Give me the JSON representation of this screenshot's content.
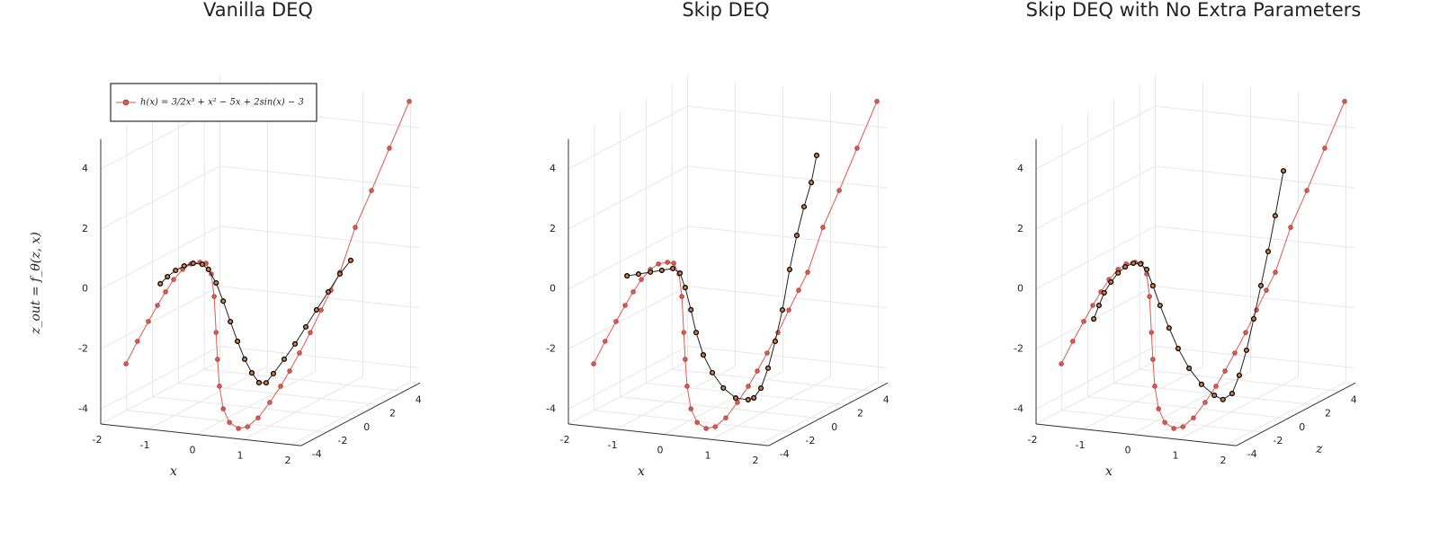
{
  "chart_data": [
    {
      "type": "line3d",
      "title": "Vanilla DEQ",
      "xlabel": "x",
      "ylabel": "z_out = f_θ(z, x)",
      "xlim": [
        -2,
        2.2
      ],
      "ylim": [
        -4.5,
        5
      ],
      "zlim": [
        -4,
        5.2
      ],
      "xticks": [
        -2,
        -1,
        0,
        1,
        2
      ],
      "yticks": [
        -4,
        -2,
        0,
        2,
        4
      ],
      "zticks": [
        -4,
        -2,
        0,
        2,
        4
      ],
      "grid": true,
      "legend": "top-left",
      "series": [
        {
          "name": "h(x) = 3/2x³ + x² − 5x + 2sin(x) − 3",
          "color": "#e0584f",
          "x": [
            -1.47,
            -1.23,
            -1.0,
            -0.81,
            -0.64,
            -0.47,
            -0.28,
            -0.11,
            0.08,
            0.21,
            0.32,
            0.38,
            0.42,
            0.45,
            0.49,
            0.57,
            0.7,
            0.89,
            1.08,
            1.15,
            1.22,
            1.29,
            1.36,
            1.43,
            1.5,
            1.57,
            1.64,
            1.71,
            1.78,
            1.85,
            1.92,
            2.0
          ],
          "y": [
            -2.4,
            -1.61,
            -0.91,
            -0.34,
            0.14,
            0.58,
            0.95,
            1.16,
            1.25,
            1.24,
            0.9,
            0.16,
            -1.03,
            -1.92,
            -2.81,
            -3.55,
            -3.98,
            -4.15,
            -4.06,
            -3.88,
            -3.5,
            -3.08,
            -2.66,
            -2.16,
            -1.6,
            -0.97,
            -0.41,
            0.1,
            1.4,
            2.41,
            3.58,
            4.87
          ],
          "z": [
            -4,
            -4,
            -4,
            -4,
            -4,
            -4,
            -4,
            -4,
            -4,
            -4,
            -4,
            -4,
            -4,
            -4,
            -4,
            -4,
            -4,
            -4,
            -4,
            -3.44,
            -2.8,
            -2.22,
            -1.78,
            -1.28,
            -0.7,
            -0.12,
            0.38,
            0.82,
            1.74,
            2.74,
            3.86,
            5.1
          ]
        },
        {
          "color": "#d9823e",
          "x": [
            -0.75,
            -0.6,
            -0.43,
            -0.25,
            -0.06,
            0.13,
            0.26,
            0.42,
            0.57,
            0.72,
            0.87,
            1.02,
            1.17,
            1.32,
            1.4,
            1.47,
            1.54,
            1.61,
            1.68,
            1.75,
            1.82,
            1.89,
            1.96
          ],
          "y": [
            0.39,
            0.65,
            0.89,
            1.07,
            1.19,
            1.19,
            1.04,
            0.62,
            0.04,
            -0.62,
            -1.25,
            -1.82,
            -2.25,
            -2.55,
            -2.6,
            -2.35,
            -1.99,
            -1.6,
            -1.15,
            -0.7,
            -0.24,
            0.23,
            0.56
          ],
          "z": [
            -4,
            -4,
            -4,
            -4,
            -4,
            -4,
            -4,
            -4,
            -4,
            -4,
            -4,
            -4,
            -4,
            -4,
            -3.74,
            -3.44,
            -2.86,
            -2.28,
            -1.71,
            -1.14,
            -0.49,
            0.15,
            0.73
          ]
        }
      ]
    },
    {
      "type": "line3d",
      "title": "Skip DEQ",
      "xlabel": "x",
      "xlim": [
        -2,
        2.2
      ],
      "ylim": [
        -4.5,
        5
      ],
      "zlim": [
        -4,
        5.2
      ],
      "xticks": [
        -2,
        -1,
        0,
        1,
        2
      ],
      "yticks": [
        -4,
        -2,
        0,
        2,
        4
      ],
      "zticks": [
        -4,
        -2,
        0,
        2,
        4
      ],
      "grid": true,
      "series": [
        {
          "color": "#e0584f",
          "x": [
            -1.47,
            -1.23,
            -1.0,
            -0.81,
            -0.64,
            -0.47,
            -0.28,
            -0.11,
            0.08,
            0.21,
            0.32,
            0.38,
            0.42,
            0.45,
            0.49,
            0.57,
            0.7,
            0.89,
            1.08,
            1.15,
            1.22,
            1.29,
            1.36,
            1.43,
            1.5,
            1.57,
            1.64,
            1.71,
            1.78,
            1.85,
            1.92,
            2.0
          ],
          "y": [
            -2.4,
            -1.61,
            -0.91,
            -0.34,
            0.14,
            0.58,
            0.95,
            1.16,
            1.25,
            1.24,
            0.9,
            0.16,
            -1.03,
            -1.92,
            -2.81,
            -3.55,
            -3.98,
            -4.15,
            -4.06,
            -3.88,
            -3.5,
            -3.08,
            -2.66,
            -2.16,
            -1.6,
            -0.97,
            -0.41,
            0.1,
            1.4,
            2.41,
            3.58,
            4.87
          ],
          "z": [
            -4,
            -4,
            -4,
            -4,
            -4,
            -4,
            -4,
            -4,
            -4,
            -4,
            -4,
            -4,
            -4,
            -4,
            -4,
            -4,
            -4,
            -4,
            -4,
            -3.44,
            -2.8,
            -2.22,
            -1.78,
            -1.28,
            -0.7,
            -0.12,
            0.38,
            0.82,
            1.74,
            2.74,
            3.86,
            5.1
          ]
        },
        {
          "color": "#d9823e",
          "x": [
            -0.77,
            -0.53,
            -0.28,
            -0.04,
            0.19,
            0.34,
            0.45,
            0.57,
            0.68,
            0.83,
            1.02,
            1.25,
            1.51,
            1.77,
            1.89,
            1.9,
            1.91,
            1.92,
            1.93,
            1.94,
            1.95,
            1.96,
            1.97,
            1.98
          ],
          "y": [
            0.65,
            0.75,
            0.86,
            0.96,
            1.06,
            0.93,
            0.47,
            -0.25,
            -0.99,
            -1.71,
            -2.27,
            -2.74,
            -3.03,
            -3.04,
            -2.96,
            -2.75,
            -2.2,
            -1.42,
            -0.49,
            0.74,
            1.76,
            2.6,
            3.29,
            4.11
          ],
          "z": [
            -4,
            -4,
            -4,
            -4,
            -4,
            -4,
            -4,
            -4,
            -4,
            -4,
            -4,
            -4,
            -4,
            -4,
            -4,
            -3.49,
            -2.97,
            -2.46,
            -1.94,
            -1.42,
            -0.9,
            -0.38,
            0.14,
            0.52
          ]
        }
      ]
    },
    {
      "type": "line3d",
      "title": "Skip DEQ with No Extra Parameters",
      "xlabel": "x",
      "zlabel": "z",
      "xlim": [
        -2,
        2.2
      ],
      "ylim": [
        -4.5,
        5
      ],
      "zlim": [
        -4,
        5.2
      ],
      "xticks": [
        -2,
        -1,
        0,
        1,
        2
      ],
      "yticks": [
        -4,
        -2,
        0,
        2,
        4
      ],
      "zticks": [
        -4,
        -2,
        0,
        2,
        4
      ],
      "grid": true,
      "series": [
        {
          "color": "#e0584f",
          "x": [
            -1.47,
            -1.23,
            -1.0,
            -0.81,
            -0.64,
            -0.47,
            -0.28,
            -0.11,
            0.08,
            0.21,
            0.32,
            0.38,
            0.42,
            0.45,
            0.49,
            0.57,
            0.7,
            0.89,
            1.08,
            1.15,
            1.22,
            1.29,
            1.36,
            1.43,
            1.5,
            1.57,
            1.64,
            1.71,
            1.78,
            1.85,
            1.92,
            2.0
          ],
          "y": [
            -2.4,
            -1.61,
            -0.91,
            -0.34,
            0.14,
            0.58,
            0.95,
            1.16,
            1.25,
            1.24,
            0.9,
            0.16,
            -1.03,
            -1.92,
            -2.81,
            -3.55,
            -3.98,
            -4.15,
            -4.06,
            -3.88,
            -3.5,
            -3.08,
            -2.66,
            -2.16,
            -1.6,
            -0.97,
            -0.41,
            0.1,
            1.4,
            2.41,
            3.58,
            4.87
          ],
          "z": [
            -4,
            -4,
            -4,
            -4,
            -4,
            -4,
            -4,
            -4,
            -4,
            -4,
            -4,
            -4,
            -4,
            -4,
            -4,
            -4,
            -4,
            -4,
            -4,
            -3.44,
            -2.8,
            -2.22,
            -1.78,
            -1.28,
            -0.7,
            -0.12,
            0.38,
            0.82,
            1.74,
            2.74,
            3.86,
            5.1
          ]
        },
        {
          "color": "#d9823e",
          "x": [
            -0.79,
            -0.68,
            -0.57,
            -0.43,
            -0.28,
            -0.13,
            0.04,
            0.19,
            0.32,
            0.45,
            0.6,
            0.79,
            0.98,
            1.21,
            1.47,
            1.74,
            1.92,
            1.93,
            1.94,
            1.95,
            1.96,
            1.97,
            1.98,
            1.99,
            2.0
          ],
          "y": [
            -0.79,
            -0.32,
            0.12,
            0.5,
            0.83,
            1.06,
            1.21,
            1.21,
            1.05,
            0.53,
            -0.1,
            -0.82,
            -1.47,
            -2.09,
            -2.58,
            -2.9,
            -3.01,
            -2.96,
            -2.47,
            -1.75,
            -0.82,
            0.17,
            1.19,
            2.27,
            3.63
          ],
          "z": [
            -4,
            -4,
            -4,
            -4,
            -4,
            -4,
            -4,
            -4,
            -4,
            -4,
            -4,
            -4,
            -4,
            -4,
            -4,
            -4,
            -4,
            -3.33,
            -2.81,
            -2.29,
            -1.77,
            -1.25,
            -0.73,
            -0.22,
            0.38
          ]
        }
      ]
    }
  ]
}
